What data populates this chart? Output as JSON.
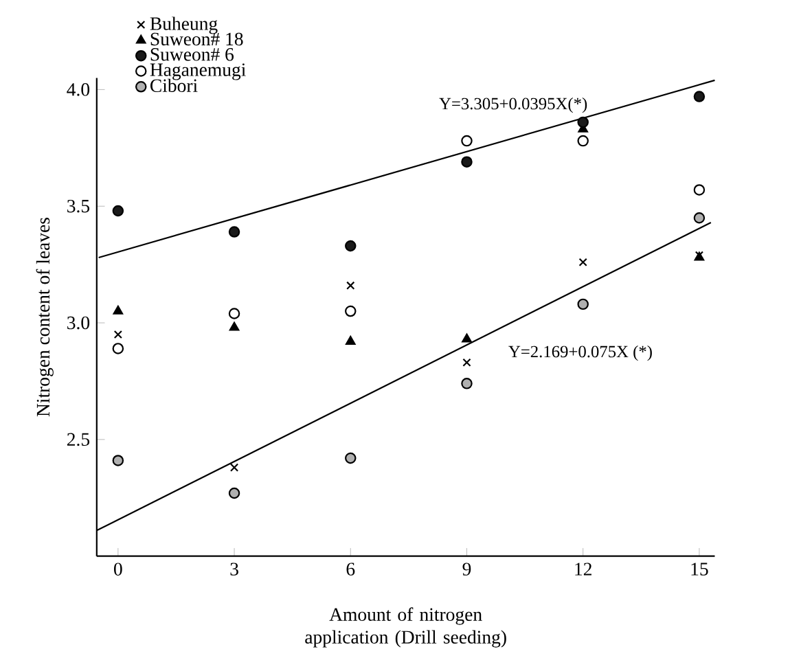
{
  "chart_data": {
    "type": "scatter",
    "xlabel": "Amount of nitrogen application (Drill seeding)",
    "ylabel": "Nitrogen content of leaves",
    "x": [
      0,
      3,
      6,
      9,
      12,
      15
    ],
    "series": [
      {
        "name": "Buheung",
        "color": "#000000",
        "marker": "cross",
        "values": [
          2.95,
          2.38,
          3.16,
          2.83,
          3.26,
          3.29
        ]
      },
      {
        "name": "Suweon# 18",
        "color": "#000000",
        "marker": "triangle",
        "values": [
          3.05,
          2.98,
          2.92,
          2.93,
          3.83,
          3.28
        ]
      },
      {
        "name": "Suweon# 6",
        "color": "#1a1a1a",
        "marker": "circle",
        "values": [
          3.48,
          3.39,
          3.33,
          3.69,
          3.86,
          3.97
        ]
      },
      {
        "name": "Haganemugi",
        "color": "#ffffff",
        "marker": "circle",
        "values": [
          2.89,
          3.04,
          3.05,
          3.78,
          3.78,
          3.57
        ]
      },
      {
        "name": "Cibori",
        "color": "#b0b0b0",
        "marker": "circle",
        "values": [
          2.41,
          2.27,
          2.42,
          2.74,
          3.08,
          3.45
        ]
      },
      {
        "type": "line",
        "color": "#000000",
        "marker": "none",
        "x": [
          -0.5,
          15.4
        ],
        "values": [
          3.28,
          4.04
        ]
      },
      {
        "type": "line",
        "color": "#000000",
        "marker": "none",
        "x": [
          -0.55,
          15.3
        ],
        "values": [
          2.11,
          3.43
        ]
      }
    ],
    "annotations": [
      "Y=3.305+0.0395X(*)",
      "Y=2.169+0.075X (*)"
    ],
    "xlim": [
      -0.55,
      15.4
    ],
    "ylim": [
      2.0,
      4.05
    ],
    "xticks": [
      0,
      3,
      6,
      9,
      12,
      15
    ],
    "yticks": [
      {
        "value": 2.5,
        "label": "2.5"
      },
      {
        "value": 3.0,
        "label": "3.0"
      },
      {
        "value": 3.5,
        "label": "3.5"
      },
      {
        "value": 4.0,
        "label": "4.0"
      }
    ],
    "grid": false,
    "legend": "top left"
  }
}
